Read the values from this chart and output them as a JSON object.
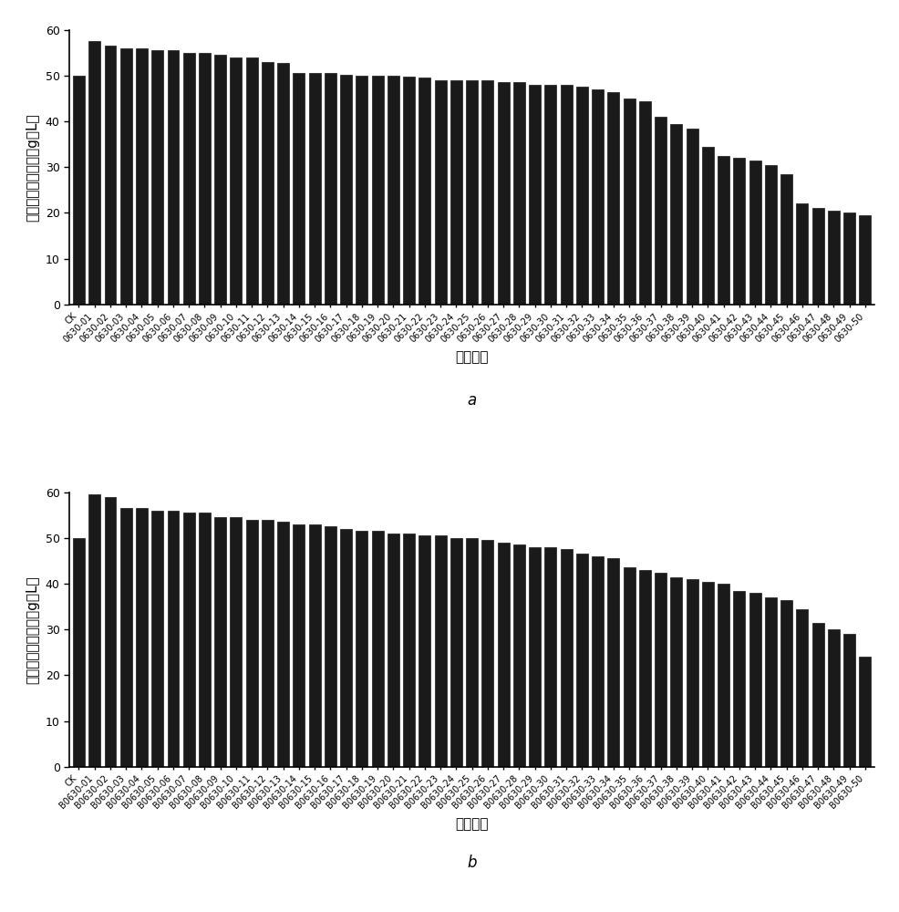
{
  "chart_a": {
    "categories": [
      "CK",
      "0630-01",
      "0630-02",
      "0630-03",
      "0630-04",
      "0630-05",
      "0630-06",
      "0630-07",
      "0630-08",
      "0630-09",
      "0630-10",
      "0630-11",
      "0630-12",
      "0630-13",
      "0630-14",
      "0630-15",
      "0630-16",
      "0630-17",
      "0630-18",
      "0630-19",
      "0630-20",
      "0630-21",
      "0630-22",
      "0630-23",
      "0630-24",
      "0630-25",
      "0630-26",
      "0630-27",
      "0630-28",
      "0630-29",
      "0630-30",
      "0630-31",
      "0630-32",
      "0630-33",
      "0630-34",
      "0630-35",
      "0630-36",
      "0630-37",
      "0630-38",
      "0630-39",
      "0630-40",
      "0630-41",
      "0630-42",
      "0630-43",
      "0630-44",
      "0630-45",
      "0630-46",
      "0630-47",
      "0630-48",
      "0630-49",
      "0630-50"
    ],
    "values": [
      50.0,
      57.5,
      56.5,
      56.0,
      56.0,
      55.5,
      55.5,
      55.0,
      55.0,
      54.5,
      54.0,
      54.0,
      53.0,
      52.8,
      50.5,
      50.5,
      50.5,
      50.2,
      50.0,
      50.0,
      50.0,
      49.8,
      49.5,
      49.0,
      49.0,
      49.0,
      49.0,
      48.5,
      48.5,
      48.0,
      48.0,
      48.0,
      47.5,
      47.0,
      46.5,
      45.0,
      44.5,
      41.0,
      39.5,
      38.5,
      34.5,
      32.5,
      32.0,
      31.5,
      30.5,
      28.5,
      22.0,
      21.0,
      20.5,
      20.0,
      19.5
    ],
    "ylabel": "可得然胶粗提产量（g／L）",
    "xlabel": "菌株编号",
    "label": "a",
    "ylim": [
      0,
      60
    ],
    "yticks": [
      0,
      10,
      20,
      30,
      40,
      50,
      60
    ]
  },
  "chart_b": {
    "categories": [
      "CK",
      "B0630-01",
      "B0630-02",
      "B0630-03",
      "B0630-04",
      "B0630-05",
      "B0630-06",
      "B0630-07",
      "B0630-08",
      "B0630-09",
      "B0630-10",
      "B0630-11",
      "B0630-12",
      "B0630-13",
      "B0630-14",
      "B0630-15",
      "B0630-16",
      "B0630-17",
      "B0630-18",
      "B0630-19",
      "B0630-20",
      "B0630-21",
      "B0630-22",
      "B0630-23",
      "B0630-24",
      "B0630-25",
      "B0630-26",
      "B0630-27",
      "B0630-28",
      "B0630-29",
      "B0630-30",
      "B0630-31",
      "B0630-32",
      "B0630-33",
      "B0630-34",
      "B0630-35",
      "B0630-36",
      "B0630-37",
      "B0630-38",
      "B0630-39",
      "B0630-40",
      "B0630-41",
      "B0630-42",
      "B0630-43",
      "B0630-44",
      "B0630-45",
      "B0630-46",
      "B0630-47",
      "B0630-48",
      "B0630-49",
      "B0630-50"
    ],
    "values": [
      50.0,
      59.5,
      59.0,
      56.5,
      56.5,
      56.0,
      56.0,
      55.5,
      55.5,
      54.5,
      54.5,
      54.0,
      54.0,
      53.5,
      53.0,
      53.0,
      52.5,
      52.0,
      51.5,
      51.5,
      51.0,
      51.0,
      50.5,
      50.5,
      50.0,
      50.0,
      49.5,
      49.0,
      48.5,
      48.0,
      48.0,
      47.5,
      46.5,
      46.0,
      45.5,
      43.5,
      43.0,
      42.5,
      41.5,
      41.0,
      40.5,
      40.0,
      38.5,
      38.0,
      37.0,
      36.5,
      34.5,
      31.5,
      30.0,
      29.0,
      24.0
    ],
    "ylabel": "可得然胶粗提产量（g／L）",
    "xlabel": "菌株编号",
    "label": "b",
    "ylim": [
      0,
      60
    ],
    "yticks": [
      0,
      10,
      20,
      30,
      40,
      50,
      60
    ]
  },
  "bar_color": "#1a1a1a",
  "bar_edgecolor": "#1a1a1a",
  "background_color": "#ffffff",
  "tick_fontsize": 7,
  "ylabel_fontsize": 11,
  "xlabel_fontsize": 11,
  "label_fontsize": 12
}
